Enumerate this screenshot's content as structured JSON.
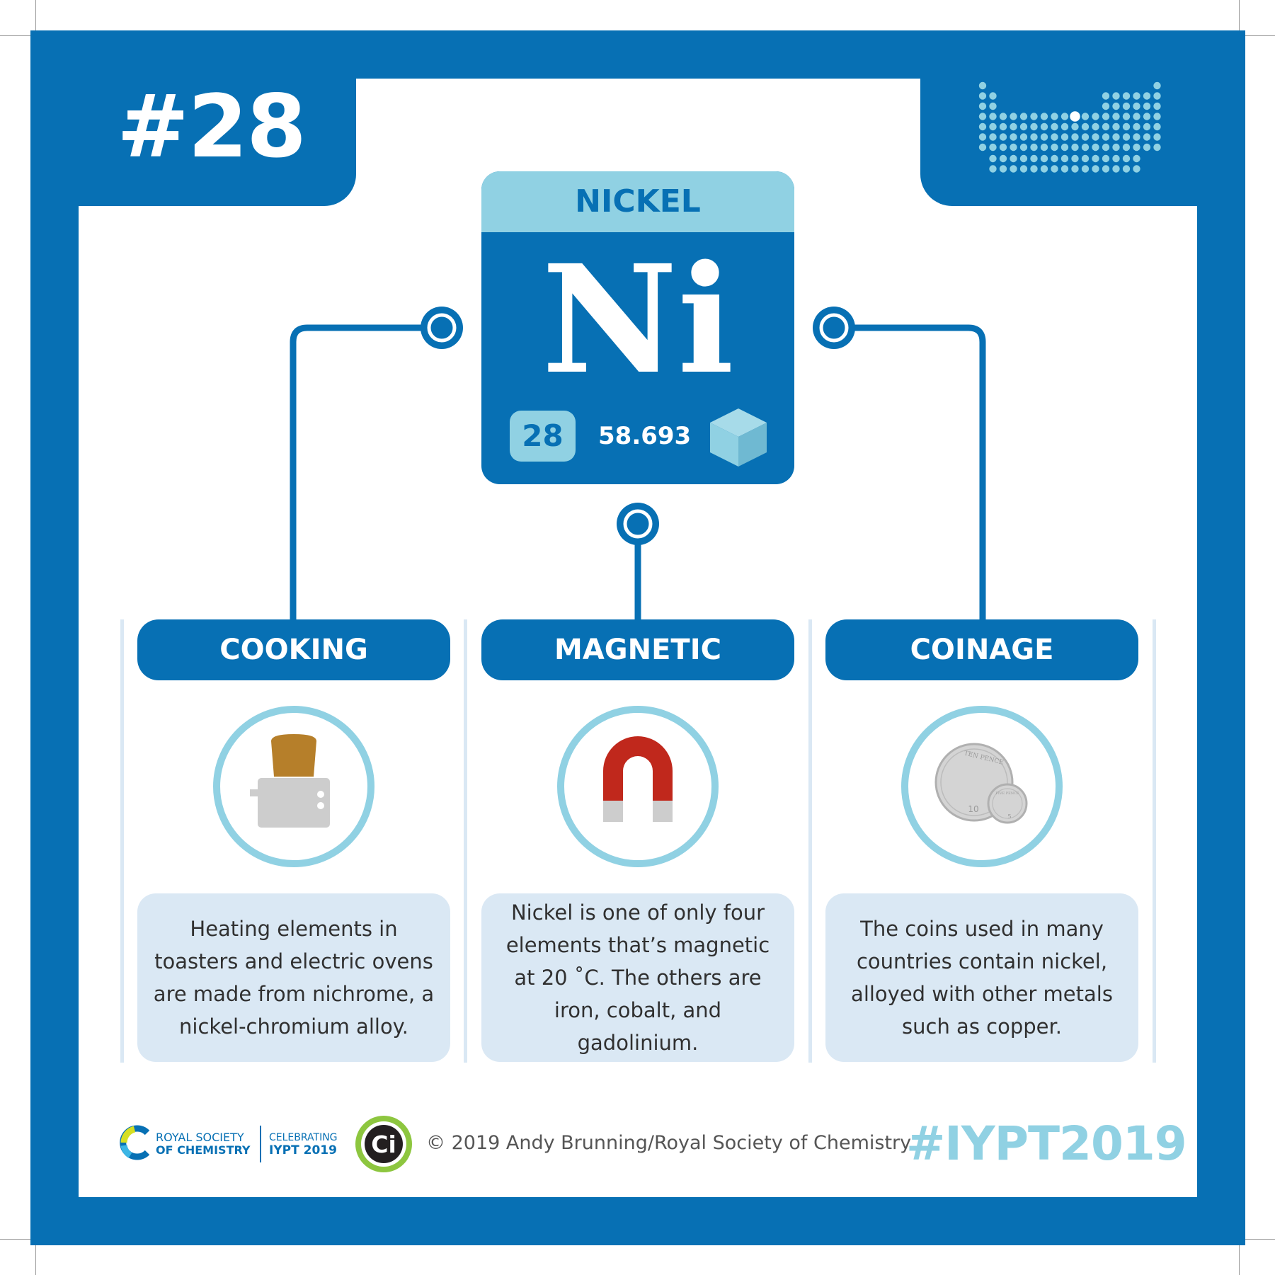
{
  "header": {
    "element_number": "#28"
  },
  "tile": {
    "name": "NICKEL",
    "symbol": "Ni",
    "atomic_number": "28",
    "atomic_mass": "58.693",
    "state_icon": "cube-icon"
  },
  "facts": [
    {
      "title": "COOKING",
      "icon": "toaster-icon",
      "text": "Heating elements in toasters and electric ovens are made from nichrome, a nickel-chromium alloy."
    },
    {
      "title": "MAGNETIC",
      "icon": "magnet-icon",
      "text": "Nickel is one of only four elements that’s magnetic at 20 ˚C. The others are iron, cobalt, and gadolinium."
    },
    {
      "title": "COINAGE",
      "icon": "coins-icon",
      "text": "The coins used in many countries contain nickel, alloyed with other metals such as copper.",
      "coin_large_value": "10",
      "coin_large_text": "TEN PENCE",
      "coin_small_value": "5",
      "coin_small_text": "FIVE PENCE"
    }
  ],
  "footer": {
    "rsc_line1": "ROYAL SOCIETY",
    "rsc_line2": "OF CHEMISTRY",
    "iypt_line1": "CELEBRATING",
    "iypt_line2": "IYPT 2019",
    "ci_badge": "Ci",
    "copyright": "© 2019 Andy Brunning/Royal Society of Chemistry",
    "hashtag": "#IYPT2019"
  },
  "colors": {
    "primary_blue": "#0770b4",
    "light_blue": "#90d1e3",
    "pale_blue": "#dae8f4",
    "magnet_red": "#c0281c",
    "toast_brown": "#b67f2a"
  }
}
